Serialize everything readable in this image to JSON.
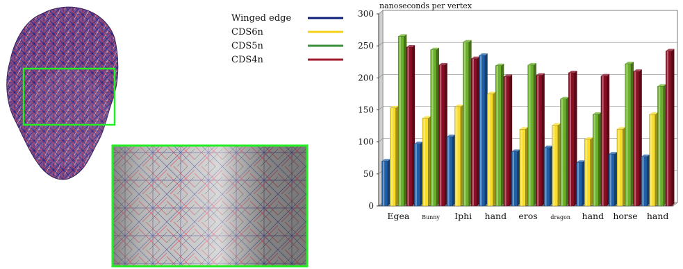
{
  "legend": {
    "items": [
      {
        "label": "Winged edge",
        "color": "#0b1f7a"
      },
      {
        "label": "CDS6n",
        "color": "#f5d21a"
      },
      {
        "label": "CDS5n",
        "color": "#3a8f3a"
      },
      {
        "label": "CDS4n",
        "color": "#a01b2e"
      }
    ]
  },
  "chart_data": {
    "type": "bar",
    "title": "nanoseconds per vertex",
    "xlabel": "",
    "ylabel": "",
    "ylim": [
      0,
      300
    ],
    "yticks": [
      0,
      50,
      100,
      150,
      200,
      250,
      300
    ],
    "grid": true,
    "legend_position": "left",
    "categories": [
      "Egea",
      "Bunny",
      "Iphi",
      "hand",
      "eros",
      "dragon",
      "hand",
      "horse",
      "hand"
    ],
    "small_categories": [
      1,
      5
    ],
    "series": [
      {
        "name": "Winged edge",
        "color": "#1f5fa8",
        "values": [
          70,
          97,
          108,
          235,
          85,
          91,
          68,
          81,
          77
        ]
      },
      {
        "name": "CDS6n",
        "color": "#f7dc2a",
        "values": [
          153,
          137,
          155,
          175,
          120,
          126,
          104,
          120,
          143
        ]
      },
      {
        "name": "CDS5n",
        "color": "#6bb02a",
        "values": [
          265,
          244,
          256,
          219,
          220,
          167,
          143,
          222,
          187
        ]
      },
      {
        "name": "CDS4n",
        "color": "#8a0e23",
        "values": [
          248,
          220,
          230,
          202,
          204,
          208,
          203,
          210,
          242
        ]
      }
    ]
  }
}
